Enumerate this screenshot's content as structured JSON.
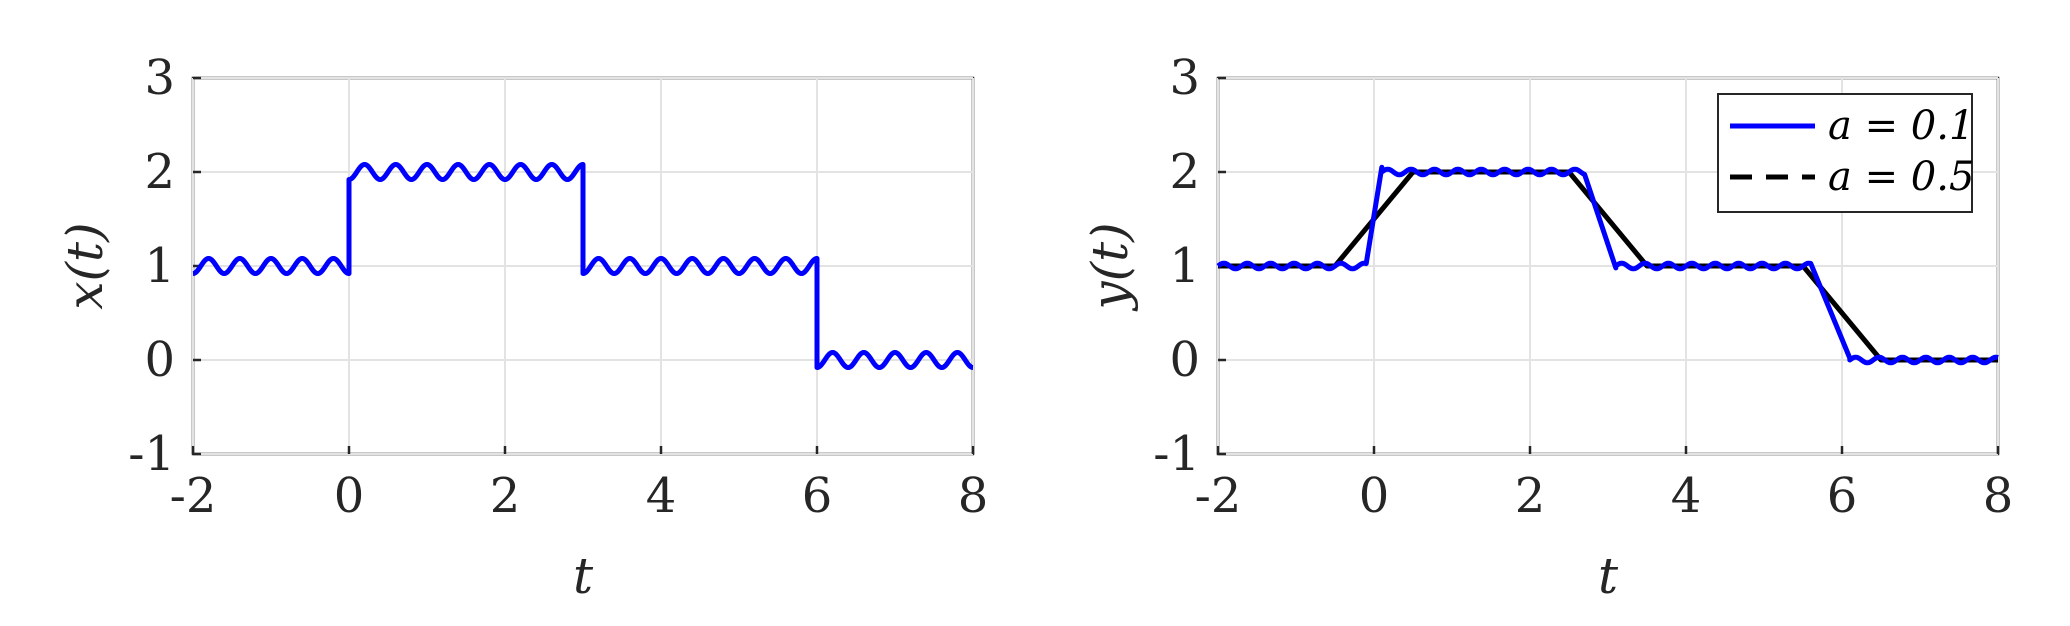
{
  "chart_data": [
    {
      "type": "line",
      "xlabel": "t",
      "ylabel": "x(t)",
      "xlim": [
        -2,
        8
      ],
      "ylim": [
        -1,
        3
      ],
      "xticks": [
        "-2",
        "0",
        "2",
        "4",
        "6",
        "8"
      ],
      "yticks": [
        "-1",
        "0",
        "1",
        "2",
        "3"
      ],
      "grid": true,
      "legend": null,
      "series": [
        {
          "color": "#0000ff",
          "style": "solid",
          "description_values": {
            "x": [
              -2,
              0,
              0,
              3,
              3,
              6,
              6,
              8
            ],
            "y": [
              1,
              1,
              2,
              2,
              1,
              1,
              0,
              0
            ]
          },
          "ripple_amplitude": 0.08,
          "ripple_period": 0.4
        }
      ]
    },
    {
      "type": "line",
      "xlabel": "t",
      "ylabel": "y(t)",
      "xlim": [
        -2,
        8
      ],
      "ylim": [
        -1,
        3
      ],
      "xticks": [
        "-2",
        "0",
        "2",
        "4",
        "6",
        "8"
      ],
      "yticks": [
        "-1",
        "0",
        "1",
        "2",
        "3"
      ],
      "grid": true,
      "legend": "top-right",
      "series": [
        {
          "name": "a = 0.1",
          "color": "#0000ff",
          "style": "solid",
          "x": [
            -2,
            -0.1,
            0.1,
            2.65,
            2.9,
            3.1,
            5.65,
            5.9,
            6.1,
            8
          ],
          "y": [
            1,
            1,
            2.05,
            2.05,
            1.5,
            1.0,
            1.05,
            0.9,
            0.05,
            0
          ],
          "ripple_amplitude": 0.03
        },
        {
          "name": "a = 0.5",
          "color": "#000000",
          "style": "dashed",
          "x": [
            -2,
            -0.5,
            0.5,
            2.5,
            3.5,
            5.5,
            6.5,
            8
          ],
          "y": [
            1,
            1,
            2,
            2,
            1,
            1,
            0,
            0
          ]
        }
      ]
    }
  ]
}
